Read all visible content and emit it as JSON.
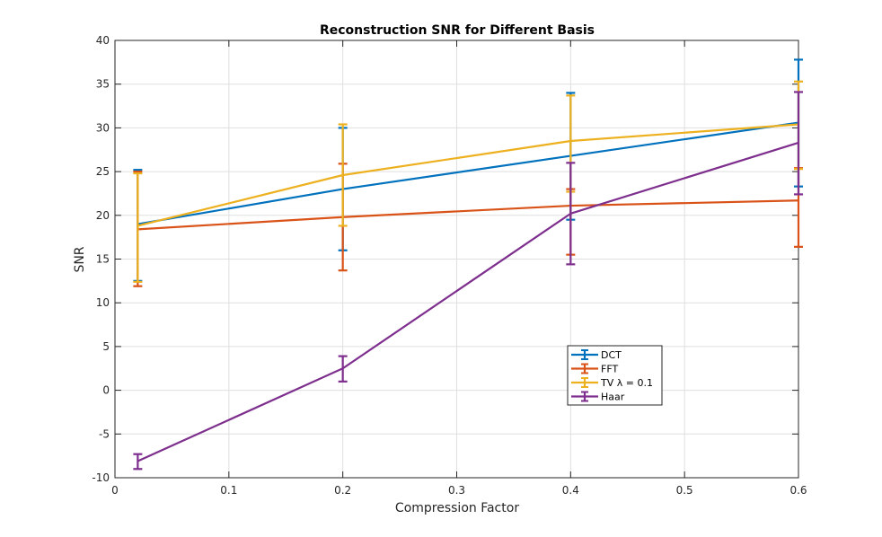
{
  "chart_data": {
    "type": "line",
    "title": "Reconstruction SNR for Different Basis",
    "xlabel": "Compression Factor",
    "ylabel": "SNR",
    "xlim": [
      0,
      0.6
    ],
    "ylim": [
      -10,
      40
    ],
    "grid": true,
    "legend_position": "inside-lower-right",
    "x": [
      0.02,
      0.2,
      0.4,
      0.6
    ],
    "xticks": [
      "0",
      "0.1",
      "0.2",
      "0.3",
      "0.4",
      "0.5",
      "0.6"
    ],
    "xtick_values": [
      0,
      0.1,
      0.2,
      0.3,
      0.4,
      0.5,
      0.6
    ],
    "yticks": [
      "-10",
      "-5",
      "0",
      "5",
      "10",
      "15",
      "20",
      "25",
      "30",
      "35",
      "40"
    ],
    "ytick_values": [
      -10,
      -5,
      0,
      5,
      10,
      15,
      20,
      25,
      30,
      35,
      40
    ],
    "series": [
      {
        "name": "DCT",
        "color": "#0072BD",
        "values": [
          19.0,
          23.0,
          26.8,
          30.6
        ],
        "err_low": [
          12.5,
          16.0,
          19.5,
          23.3
        ],
        "err_high": [
          25.2,
          30.0,
          34.0,
          37.8
        ]
      },
      {
        "name": "FFT",
        "color": "#D95319",
        "values": [
          18.4,
          19.8,
          21.1,
          21.7
        ],
        "err_low": [
          11.9,
          13.7,
          15.5,
          16.4
        ],
        "err_high": [
          25.0,
          25.9,
          23.0,
          25.4
        ]
      },
      {
        "name": "TV λ = 0.1",
        "color": "#EDB120",
        "values": [
          18.8,
          24.6,
          28.5,
          30.4
        ],
        "err_low": [
          12.4,
          18.8,
          22.7,
          25.3
        ],
        "err_high": [
          24.8,
          30.4,
          33.7,
          35.3
        ]
      },
      {
        "name": "Haar",
        "color": "#7E2F8E",
        "values": [
          -8.1,
          2.5,
          20.2,
          28.3
        ],
        "err_low": [
          -9.0,
          1.0,
          14.4,
          22.4
        ],
        "err_high": [
          -7.3,
          3.9,
          26.0,
          34.1
        ]
      }
    ]
  }
}
